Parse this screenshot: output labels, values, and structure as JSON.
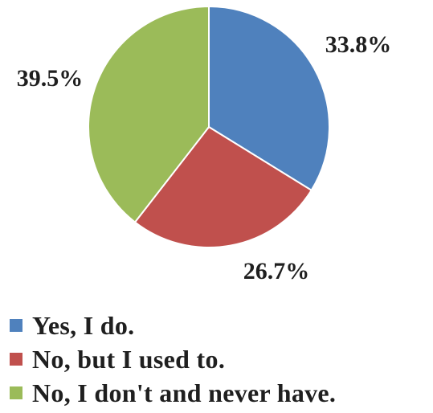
{
  "chart_data": {
    "type": "pie",
    "title": "",
    "categories": [
      "Yes, I do.",
      "No, but I used to.",
      "No, I don't and never have."
    ],
    "values": [
      33.8,
      26.7,
      39.5
    ],
    "labels": [
      "33.8%",
      "26.7%",
      "39.5%"
    ],
    "colors": [
      "#4f81bd",
      "#c0504d",
      "#9bbb59"
    ],
    "legend_position": "bottom"
  }
}
